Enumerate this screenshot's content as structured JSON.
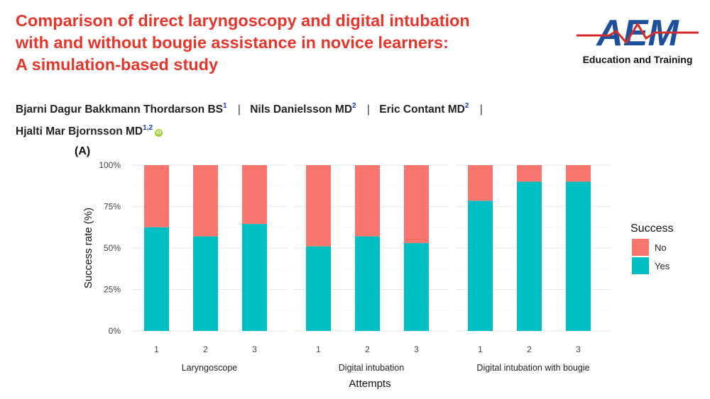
{
  "header": {
    "title_lines": [
      "Comparison of direct laryngoscopy and digital intubation",
      "with and without bougie assistance in novice learners:",
      "A simulation-based study"
    ]
  },
  "logo": {
    "letters": "AEM",
    "subtitle": "Education and Training"
  },
  "authors": [
    {
      "name": "Bjarni Dagur Bakkmann Thordarson BS",
      "sup": "1"
    },
    {
      "name": "Nils Danielsson MD",
      "sup": "2"
    },
    {
      "name": "Eric Contant MD",
      "sup": "2"
    },
    {
      "name": "Hjalti Mar Bjornsson MD",
      "sup": "1,2"
    }
  ],
  "separator": "|",
  "colors": {
    "title": "#e8352b",
    "no": "#f8766d",
    "yes": "#00bfc4",
    "logo_blue": "#1c4f9c",
    "logo_red": "#d62b2b"
  },
  "chart_data": {
    "type": "bar",
    "stacked": true,
    "panel_label": "(A)",
    "xlabel": "Attempts",
    "ylabel": "Success rate (%)",
    "ylim": [
      0,
      100
    ],
    "yticks": [
      0,
      25,
      50,
      75,
      100
    ],
    "ytick_labels": [
      "0%",
      "25%",
      "50%",
      "75%",
      "100%"
    ],
    "legend": {
      "title": "Success",
      "position": "right",
      "entries": [
        "No",
        "Yes"
      ]
    },
    "panels": [
      {
        "name": "Laryngoscope",
        "categories": [
          "1",
          "2",
          "3"
        ],
        "series": [
          {
            "name": "Yes",
            "values": [
              62.5,
              57,
              64.5
            ]
          },
          {
            "name": "No",
            "values": [
              37.5,
              43,
              35.5
            ]
          }
        ]
      },
      {
        "name": "Digital intubation",
        "categories": [
          "1",
          "2",
          "3"
        ],
        "series": [
          {
            "name": "Yes",
            "values": [
              51,
              57,
              53
            ]
          },
          {
            "name": "No",
            "values": [
              49,
              43,
              47
            ]
          }
        ]
      },
      {
        "name": "Digital intubation with bougie",
        "categories": [
          "1",
          "2",
          "3"
        ],
        "series": [
          {
            "name": "Yes",
            "values": [
              78.5,
              90,
              90
            ]
          },
          {
            "name": "No",
            "values": [
              21.5,
              10,
              10
            ]
          }
        ]
      }
    ]
  }
}
